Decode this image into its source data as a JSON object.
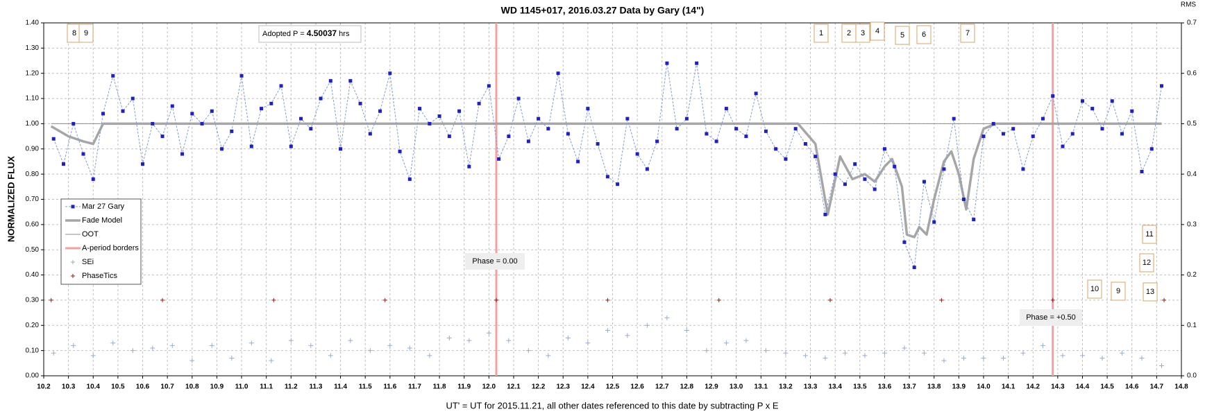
{
  "chart_data": {
    "type": "scatter",
    "title": "WD 1145+017, 2016.03.27 Data by Gary (14\")",
    "x_label": "UT' = UT for 2015.11.21, all other dates referenced to this date by subtracting P x E",
    "y_label": "NORMALIZED FLUX",
    "y2_label": "RMS",
    "xlim": [
      10.2,
      14.8
    ],
    "ylim": [
      0,
      1.4
    ],
    "y2lim": [
      0,
      0.7
    ],
    "grid": true,
    "legend": "left",
    "xticks": [
      10.2,
      10.3,
      10.4,
      10.5,
      10.6,
      10.7,
      10.8,
      10.9,
      {
        "value": 11.0,
        "label": "11.0"
      },
      11.1,
      11.2,
      11.3,
      11.4,
      11.5,
      11.6,
      11.7,
      11.8,
      11.9,
      {
        "value": 12.0,
        "label": "12.0"
      },
      12.1,
      12.2,
      12.3,
      12.4,
      12.5,
      12.6,
      12.7,
      12.8,
      12.9,
      {
        "value": 13.0,
        "label": "13.0"
      },
      13.1,
      13.2,
      13.3,
      13.4,
      13.5,
      13.6,
      13.7,
      13.8,
      13.9,
      {
        "value": 14.0,
        "label": "14.0"
      },
      14.1,
      14.2,
      14.3,
      14.4,
      14.5,
      14.6,
      14.7,
      14.8
    ],
    "yticks": [
      {
        "value": 0,
        "label": "0.00"
      },
      {
        "value": 0.1,
        "label": "0.10"
      },
      {
        "value": 0.2,
        "label": "0.20"
      },
      {
        "value": 0.3,
        "label": "0.30"
      },
      {
        "value": 0.4,
        "label": "0.40"
      },
      {
        "value": 0.5,
        "label": "0.50"
      },
      {
        "value": 0.6,
        "label": "0.60"
      },
      {
        "value": 0.7,
        "label": "0.70"
      },
      {
        "value": 0.8,
        "label": "0.80"
      },
      {
        "value": 0.9,
        "label": "0.90"
      },
      {
        "value": 1.0,
        "label": "1.00"
      },
      {
        "value": 1.1,
        "label": "1.10"
      },
      {
        "value": 1.2,
        "label": "1.20"
      },
      {
        "value": 1.3,
        "label": "1.30"
      },
      {
        "value": 1.4,
        "label": "1.40"
      }
    ],
    "y2ticks": [
      {
        "value": 0,
        "label": "0.0"
      },
      {
        "value": 0.1,
        "label": "0.1"
      },
      {
        "value": 0.2,
        "label": "0.2"
      },
      {
        "value": 0.3,
        "label": "0.3"
      },
      {
        "value": 0.4,
        "label": "0.4"
      },
      {
        "value": 0.5,
        "label": "0.5"
      },
      {
        "value": 0.6,
        "label": "0.6"
      },
      {
        "value": 0.7,
        "label": "0.7"
      }
    ],
    "series": [
      {
        "name": "Mar 27 Gary",
        "color": "#1f1fc8",
        "style": "dashed-markers",
        "x": [
          10.24,
          10.28,
          10.32,
          10.36,
          10.4,
          10.44,
          10.48,
          10.52,
          10.56,
          10.6,
          10.64,
          10.68,
          10.72,
          10.76,
          10.8,
          10.84,
          10.88,
          10.92,
          10.96,
          11.0,
          11.04,
          11.08,
          11.12,
          11.16,
          11.2,
          11.24,
          11.28,
          11.32,
          11.36,
          11.4,
          11.44,
          11.48,
          11.52,
          11.56,
          11.6,
          11.64,
          11.68,
          11.72,
          11.76,
          11.8,
          11.84,
          11.88,
          11.92,
          11.96,
          12.0,
          12.04,
          12.08,
          12.12,
          12.16,
          12.2,
          12.24,
          12.28,
          12.32,
          12.36,
          12.4,
          12.44,
          12.48,
          12.52,
          12.56,
          12.6,
          12.64,
          12.68,
          12.72,
          12.76,
          12.8,
          12.84,
          12.88,
          12.92,
          12.96,
          13.0,
          13.04,
          13.08,
          13.12,
          13.16,
          13.2,
          13.24,
          13.28,
          13.32,
          13.36,
          13.4,
          13.44,
          13.48,
          13.52,
          13.56,
          13.6,
          13.64,
          13.68,
          13.72,
          13.76,
          13.8,
          13.84,
          13.88,
          13.92,
          13.96,
          14.0,
          14.04,
          14.08,
          14.12,
          14.16,
          14.2,
          14.24,
          14.28,
          14.32,
          14.36,
          14.4,
          14.44,
          14.48,
          14.52,
          14.56,
          14.6,
          14.64,
          14.68,
          14.72
        ],
        "values": [
          0.94,
          0.84,
          1.0,
          0.88,
          0.78,
          1.04,
          1.19,
          1.05,
          1.1,
          0.84,
          1.0,
          0.95,
          1.07,
          0.88,
          1.04,
          1.0,
          1.05,
          0.9,
          0.97,
          1.19,
          0.91,
          1.06,
          1.08,
          1.15,
          0.91,
          1.02,
          0.98,
          1.1,
          1.17,
          0.9,
          1.17,
          1.08,
          0.96,
          1.05,
          1.2,
          0.89,
          0.78,
          1.06,
          1.0,
          1.03,
          0.95,
          1.05,
          0.83,
          1.08,
          1.15,
          0.86,
          0.95,
          1.1,
          0.93,
          1.02,
          0.98,
          1.2,
          0.96,
          0.85,
          1.06,
          0.92,
          0.79,
          0.76,
          1.02,
          0.88,
          0.82,
          0.93,
          1.24,
          0.98,
          1.02,
          1.24,
          0.96,
          0.93,
          1.06,
          0.98,
          0.95,
          1.12,
          0.97,
          0.9,
          0.86,
          0.98,
          0.92,
          0.87,
          0.64,
          0.8,
          0.76,
          0.84,
          0.78,
          0.74,
          0.9,
          0.83,
          0.53,
          0.43,
          0.77,
          0.61,
          0.82,
          1.02,
          0.7,
          0.62,
          0.95,
          1.0,
          0.96,
          0.98,
          0.82,
          0.95,
          1.02,
          1.11,
          0.91,
          0.96,
          1.09,
          1.06,
          0.98,
          1.09,
          0.96,
          1.05,
          0.81,
          0.9,
          1.15
        ]
      },
      {
        "name": "Fade Model",
        "color": "#a6a6a6",
        "style": "line",
        "x": [
          10.23,
          10.3,
          10.36,
          10.4,
          10.44,
          10.6,
          13.25,
          13.32,
          13.37,
          13.42,
          13.47,
          13.52,
          13.56,
          13.6,
          13.63,
          13.67,
          13.69,
          13.72,
          13.74,
          13.77,
          13.8,
          13.84,
          13.87,
          13.9,
          13.93,
          13.96,
          14.0,
          14.05,
          14.72
        ],
        "values": [
          0.99,
          0.95,
          0.93,
          0.92,
          1.0,
          1.0,
          1.0,
          0.92,
          0.64,
          0.87,
          0.78,
          0.8,
          0.77,
          0.83,
          0.86,
          0.75,
          0.56,
          0.55,
          0.59,
          0.56,
          0.7,
          0.85,
          0.89,
          0.8,
          0.66,
          0.86,
          0.98,
          1.0,
          1.0
        ]
      },
      {
        "name": "OOT",
        "color": "#8c8c8c",
        "style": "thin-line",
        "x": [
          10.23,
          14.72
        ],
        "values": [
          1.0,
          1.0
        ]
      },
      {
        "name": "A-period borders",
        "color": "#f2a0a0",
        "style": "vertical",
        "x": [
          12.03,
          14.28
        ]
      },
      {
        "name": "SEi",
        "color": "#9aabcc",
        "style": "plus",
        "axis": "y2",
        "x": [
          10.24,
          10.32,
          10.4,
          10.48,
          10.56,
          10.64,
          10.72,
          10.8,
          10.88,
          10.96,
          11.04,
          11.12,
          11.2,
          11.28,
          11.36,
          11.44,
          11.52,
          11.6,
          11.68,
          11.76,
          11.84,
          11.92,
          12.0,
          12.08,
          12.16,
          12.24,
          12.32,
          12.4,
          12.48,
          12.56,
          12.64,
          12.72,
          12.8,
          12.88,
          12.96,
          13.04,
          13.12,
          13.2,
          13.28,
          13.36,
          13.44,
          13.52,
          13.6,
          13.68,
          13.76,
          13.84,
          13.92,
          14.0,
          14.08,
          14.16,
          14.24,
          14.32,
          14.4,
          14.48,
          14.56,
          14.64,
          14.72
        ],
        "values": [
          0.045,
          0.06,
          0.04,
          0.065,
          0.05,
          0.055,
          0.06,
          0.03,
          0.06,
          0.035,
          0.065,
          0.03,
          0.07,
          0.06,
          0.04,
          0.07,
          0.05,
          0.06,
          0.055,
          0.04,
          0.075,
          0.07,
          0.085,
          0.07,
          0.05,
          0.04,
          0.075,
          0.065,
          0.09,
          0.08,
          0.1,
          0.115,
          0.09,
          0.05,
          0.065,
          0.07,
          0.05,
          0.045,
          0.04,
          0.035,
          0.045,
          0.04,
          0.045,
          0.055,
          0.045,
          0.03,
          0.035,
          0.035,
          0.035,
          0.045,
          0.06,
          0.04,
          0.04,
          0.035,
          0.045,
          0.035,
          0.02
        ]
      },
      {
        "name": "PhaseTics",
        "color": "#8b1a1a",
        "style": "plus",
        "x": [
          10.23,
          10.68,
          11.13,
          11.58,
          12.03,
          12.48,
          12.93,
          13.38,
          13.83,
          14.28,
          14.73
        ],
        "values": [
          0.3,
          0.3,
          0.3,
          0.3,
          0.3,
          0.3,
          0.3,
          0.3,
          0.3,
          0.3,
          0.3
        ]
      }
    ],
    "period_note": [
      "Adopted P = ",
      "4.50037",
      " hrs"
    ],
    "phase_labels": [
      "Phase = 0.00",
      "Phase = +0.50"
    ],
    "markers": [
      "8",
      "9",
      "1",
      "2",
      "3",
      "4",
      "5",
      "6",
      "7",
      "11",
      "12",
      "10",
      "9",
      "13"
    ]
  }
}
